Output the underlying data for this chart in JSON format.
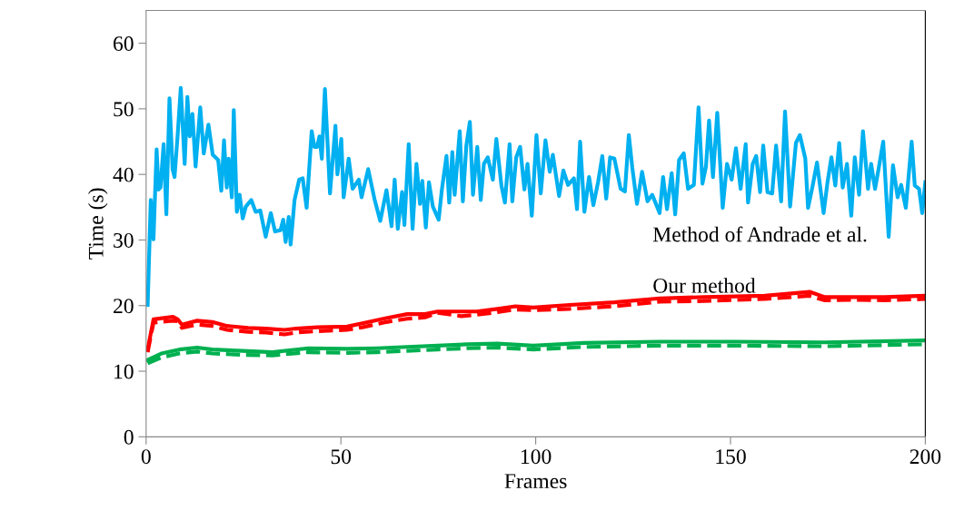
{
  "chart_data": {
    "type": "line",
    "xlabel": "Frames",
    "ylabel": "Time (s)",
    "xlim": [
      0,
      200
    ],
    "xticks": [
      0,
      50,
      100,
      150,
      200
    ],
    "ylim": [
      0,
      65
    ],
    "yticks": [
      0,
      10,
      20,
      30,
      40,
      50,
      60
    ],
    "grid": false,
    "legend": false,
    "marker": "none",
    "annotations": [
      "Method of Andrade et al.",
      "Our method"
    ],
    "series": [
      {
        "color": "#00b0f0",
        "line_style": "solid",
        "x": [
          0.4,
          1.2,
          1.9,
          2.7,
          3.2,
          3.7,
          4.5,
          5.2,
          6.0,
          6.8,
          7.3,
          8.1,
          8.9,
          9.9,
          10.6,
          11.2,
          11.9,
          12.7,
          13.9,
          14.8,
          16.0,
          17.1,
          18.5,
          19.3,
          20.0,
          20.7,
          21.2,
          22.0,
          22.5,
          23.3,
          24.0,
          24.8,
          25.6,
          27.0,
          28.1,
          29.3,
          30.7,
          32.0,
          33.1,
          34.5,
          35.2,
          35.8,
          36.6,
          37.1,
          38.1,
          39.3,
          40.2,
          41.2,
          42.5,
          43.2,
          43.9,
          44.5,
          45.1,
          45.9,
          47.2,
          48.6,
          49.1,
          50.1,
          50.7,
          52.0,
          53.0,
          54.6,
          55.3,
          57.0,
          58.6,
          60.1,
          61.7,
          63.0,
          63.8,
          64.6,
          65.7,
          66.3,
          67.4,
          68.4,
          69.4,
          70.3,
          70.9,
          71.8,
          72.6,
          73.6,
          75.1,
          75.9,
          77.1,
          77.8,
          78.6,
          79.2,
          80.5,
          81.3,
          82.2,
          83.1,
          83.9,
          85.0,
          85.9,
          86.7,
          87.7,
          89.0,
          89.9,
          91.2,
          92.1,
          93.3,
          94.0,
          95.0,
          96.0,
          97.1,
          97.9,
          99.0,
          100.2,
          101.3,
          102.5,
          103.6,
          104.4,
          106.0,
          107.1,
          108.3,
          109.8,
          110.6,
          111.4,
          112.5,
          113.7,
          114.8,
          116.0,
          117.1,
          118.1,
          119.1,
          120.2,
          121.8,
          122.9,
          123.9,
          124.8,
          126.0,
          127.3,
          128.7,
          129.9,
          131.0,
          131.8,
          132.7,
          133.7,
          134.9,
          135.8,
          136.8,
          138.0,
          139.1,
          140.6,
          141.8,
          142.8,
          143.7,
          144.5,
          145.5,
          146.6,
          148.0,
          149.1,
          150.3,
          151.4,
          152.6,
          153.9,
          154.5,
          155.7,
          156.6,
          157.6,
          158.4,
          159.5,
          160.7,
          161.7,
          163.0,
          164.0,
          165.3,
          166.8,
          167.8,
          169.2,
          169.9,
          171.1,
          172.2,
          173.9,
          174.9,
          175.9,
          176.9,
          177.9,
          178.8,
          179.9,
          181.0,
          181.9,
          183.0,
          184.0,
          185.3,
          186.1,
          187.1,
          188.0,
          189.2,
          190.6,
          191.7,
          192.9,
          193.8,
          195.0,
          196.5,
          197.3,
          198.4,
          199.2,
          200.0
        ],
        "values": [
          20.1,
          36.1,
          30.1,
          43.8,
          37.7,
          38.0,
          44.6,
          33.9,
          51.6,
          40.8,
          39.6,
          46.0,
          53.2,
          41.6,
          51.8,
          45.8,
          49.2,
          41.2,
          50.2,
          43.2,
          47.6,
          43.0,
          42.2,
          37.5,
          45.2,
          38.0,
          42.4,
          36.5,
          49.8,
          34.3,
          36.9,
          33.3,
          35.1,
          36.1,
          34.3,
          34.5,
          30.5,
          34.1,
          31.3,
          31.5,
          33.1,
          29.7,
          33.5,
          29.3,
          36.1,
          39.2,
          39.4,
          34.9,
          46.6,
          44.2,
          44.2,
          45.8,
          42.4,
          53.0,
          37.1,
          47.4,
          40.0,
          45.4,
          36.5,
          42.4,
          37.8,
          39.2,
          36.5,
          40.8,
          36.3,
          32.9,
          37.6,
          32.1,
          39.2,
          31.7,
          37.3,
          32.3,
          44.6,
          31.7,
          41.6,
          35.5,
          39.0,
          31.9,
          38.8,
          35.1,
          33.1,
          37.6,
          42.8,
          35.7,
          43.4,
          36.9,
          46.6,
          35.9,
          44.4,
          48.0,
          36.9,
          44.2,
          36.1,
          41.6,
          42.6,
          39.2,
          45.4,
          38.3,
          35.7,
          44.6,
          35.9,
          42.6,
          44.2,
          37.7,
          41.6,
          33.7,
          46.0,
          37.1,
          45.2,
          40.4,
          43.0,
          36.7,
          40.6,
          38.4,
          39.4,
          34.7,
          45.0,
          34.3,
          39.6,
          35.3,
          38.8,
          42.8,
          36.3,
          42.6,
          42.4,
          37.8,
          37.4,
          46.0,
          41.0,
          35.5,
          40.4,
          35.9,
          36.9,
          35.3,
          34.1,
          39.6,
          34.7,
          40.2,
          33.9,
          42.2,
          43.2,
          37.8,
          38.4,
          50.2,
          38.6,
          41.2,
          48.2,
          39.6,
          49.4,
          34.9,
          41.6,
          39.2,
          44.0,
          37.8,
          44.6,
          35.7,
          41.6,
          42.8,
          37.3,
          44.4,
          37.3,
          37.1,
          44.4,
          35.9,
          49.6,
          35.1,
          44.8,
          46.0,
          42.4,
          34.9,
          38.3,
          41.8,
          34.1,
          38.8,
          42.6,
          38.3,
          44.8,
          38.0,
          41.6,
          33.7,
          42.6,
          36.9,
          46.6,
          37.8,
          41.6,
          37.8,
          40.8,
          45.0,
          30.5,
          41.4,
          36.5,
          38.4,
          34.9,
          45.0,
          38.3,
          37.8,
          34.1,
          38.8
        ]
      },
      {
        "color": "#ff0000",
        "line_style": "dashed",
        "x": [
          0.4,
          1.9,
          6.9,
          8.1,
          9.2,
          13.1,
          17.0,
          20.8,
          26.2,
          30.8,
          35.5,
          38.5,
          43.9,
          51.6,
          55.5,
          61.7,
          67.0,
          71.6,
          74.8,
          80.9,
          84.8,
          90.2,
          94.8,
          99.4,
          108.7,
          120.2,
          131.8,
          143.3,
          158.8,
          170.3,
          174.2,
          181.9,
          189.6,
          200.0
        ],
        "values": [
          12.9,
          17.4,
          17.7,
          17.6,
          16.6,
          17.1,
          16.9,
          16.3,
          16.0,
          15.9,
          15.6,
          15.9,
          16.1,
          16.3,
          16.7,
          17.5,
          18.0,
          18.2,
          18.9,
          18.4,
          18.6,
          19.0,
          19.4,
          19.3,
          19.5,
          19.9,
          20.6,
          20.7,
          21.0,
          21.5,
          20.8,
          20.9,
          20.8,
          21.0
        ]
      },
      {
        "color": "#ff0000",
        "line_style": "solid",
        "x": [
          0.4,
          1.9,
          6.9,
          8.1,
          9.2,
          13.1,
          17.0,
          20.8,
          26.2,
          30.8,
          35.5,
          38.5,
          43.9,
          51.6,
          55.5,
          61.7,
          67.0,
          71.6,
          74.8,
          80.9,
          84.8,
          90.2,
          94.8,
          99.4,
          108.7,
          120.2,
          131.8,
          143.3,
          158.8,
          170.3,
          174.2,
          181.9,
          189.6,
          200.0
        ],
        "values": [
          13.3,
          17.9,
          18.3,
          17.9,
          17.1,
          17.7,
          17.5,
          16.9,
          16.6,
          16.5,
          16.3,
          16.5,
          16.7,
          16.8,
          17.3,
          18.1,
          18.7,
          18.7,
          19.1,
          19.1,
          19.1,
          19.5,
          19.9,
          19.7,
          20.1,
          20.5,
          21.1,
          21.3,
          21.5,
          22.1,
          21.3,
          21.3,
          21.3,
          21.5
        ]
      },
      {
        "color": "#00b050",
        "line_style": "dashed",
        "x": [
          0.4,
          3.9,
          8.5,
          13.1,
          17.0,
          24.7,
          32.4,
          41.6,
          51.6,
          59.3,
          67.0,
          74.8,
          82.5,
          90.2,
          99.4,
          112.5,
          131.8,
          151.0,
          174.2,
          200.0
        ],
        "values": [
          11.2,
          12.1,
          12.7,
          13.0,
          12.7,
          12.5,
          12.4,
          12.9,
          12.8,
          12.9,
          13.1,
          13.3,
          13.5,
          13.6,
          13.3,
          13.7,
          13.9,
          13.9,
          13.8,
          14.1
        ]
      },
      {
        "color": "#00b050",
        "line_style": "solid",
        "x": [
          0.4,
          3.9,
          8.5,
          13.1,
          17.0,
          24.7,
          32.4,
          41.6,
          51.6,
          59.3,
          67.0,
          74.8,
          82.5,
          90.2,
          99.4,
          112.5,
          131.8,
          151.0,
          174.2,
          200.0
        ],
        "values": [
          11.7,
          12.7,
          13.3,
          13.6,
          13.3,
          13.1,
          12.9,
          13.5,
          13.4,
          13.5,
          13.7,
          13.9,
          14.1,
          14.2,
          13.9,
          14.3,
          14.5,
          14.5,
          14.4,
          14.7
        ]
      }
    ]
  }
}
